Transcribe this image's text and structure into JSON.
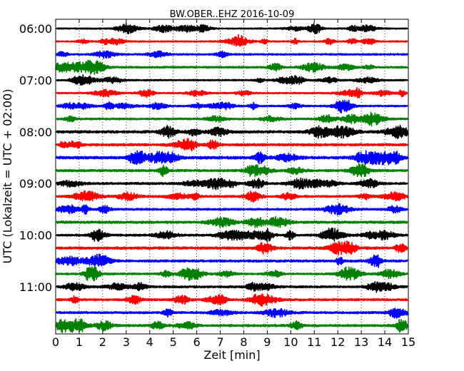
{
  "chart_data": {
    "type": "line",
    "title": "BW.OBER..EHZ 2016-10-09",
    "xlabel": "Zeit  [min]",
    "ylabel": "UTC (Lokalzeit = UTC + 02:00)",
    "xlim": [
      0,
      15
    ],
    "x_ticks": [
      "0",
      "1",
      "2",
      "3",
      "4",
      "5",
      "6",
      "7",
      "8",
      "9",
      "10",
      "11",
      "12",
      "13",
      "14",
      "15"
    ],
    "y_ticks": [
      "06:00",
      "07:00",
      "08:00",
      "09:00",
      "10:00",
      "11:00"
    ],
    "row_interval_minutes": 15,
    "rows_per_hour": 4,
    "trace_colors": [
      "#000000",
      "#ff0000",
      "#0000ff",
      "#008000"
    ],
    "grid": "vertical dotted lines at each minute",
    "series": [
      {
        "start": "06:00",
        "color": "#000000",
        "amplitude": 0.2
      },
      {
        "start": "06:15",
        "color": "#ff0000",
        "amplitude": 0.2
      },
      {
        "start": "06:30",
        "color": "#0000ff",
        "amplitude": 0.24
      },
      {
        "start": "06:45",
        "color": "#008000",
        "amplitude": 0.26
      },
      {
        "start": "07:00",
        "color": "#000000",
        "amplitude": 0.22
      },
      {
        "start": "07:15",
        "color": "#ff0000",
        "amplitude": 0.22
      },
      {
        "start": "07:30",
        "color": "#0000ff",
        "amplitude": 0.24
      },
      {
        "start": "07:45",
        "color": "#008000",
        "amplitude": 0.26
      },
      {
        "start": "08:00",
        "color": "#000000",
        "amplitude": 0.36
      },
      {
        "start": "08:15",
        "color": "#ff0000",
        "amplitude": 0.34
      },
      {
        "start": "08:30",
        "color": "#0000ff",
        "amplitude": 0.38
      },
      {
        "start": "08:45",
        "color": "#008000",
        "amplitude": 0.32
      },
      {
        "start": "09:00",
        "color": "#000000",
        "amplitude": 0.3
      },
      {
        "start": "09:15",
        "color": "#ff0000",
        "amplitude": 0.3
      },
      {
        "start": "09:30",
        "color": "#0000ff",
        "amplitude": 0.28
      },
      {
        "start": "09:45",
        "color": "#008000",
        "amplitude": 0.34
      },
      {
        "start": "10:00",
        "color": "#000000",
        "amplitude": 0.3
      },
      {
        "start": "10:15",
        "color": "#ff0000",
        "amplitude": 0.34
      },
      {
        "start": "10:30",
        "color": "#0000ff",
        "amplitude": 0.32
      },
      {
        "start": "10:45",
        "color": "#008000",
        "amplitude": 0.26
      },
      {
        "start": "11:00",
        "color": "#000000",
        "amplitude": 0.3
      },
      {
        "start": "11:15",
        "color": "#ff0000",
        "amplitude": 0.3
      },
      {
        "start": "11:30",
        "color": "#0000ff",
        "amplitude": 0.3
      },
      {
        "start": "11:45",
        "color": "#008000",
        "amplitude": 0.32
      }
    ]
  }
}
